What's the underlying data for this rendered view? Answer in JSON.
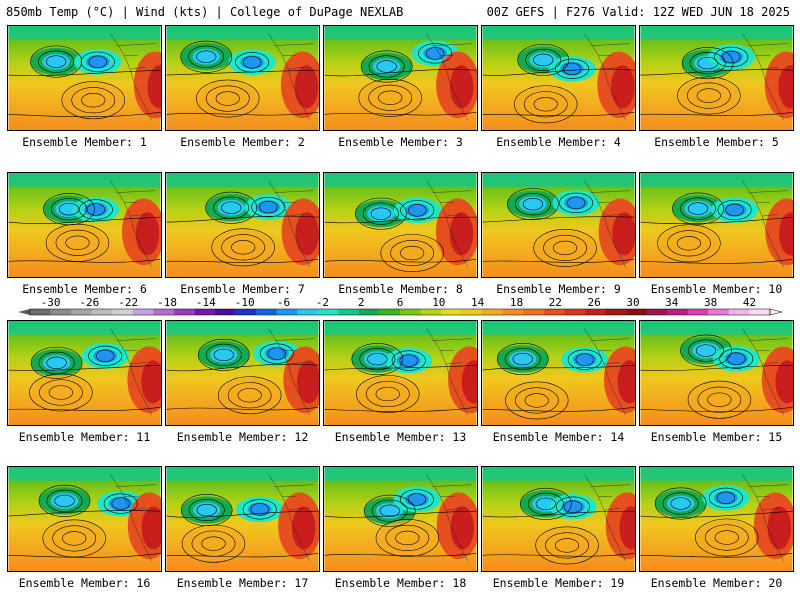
{
  "header": {
    "left": "850mb Temp (°C) | Wind (kts) | College of DuPage NEXLAB",
    "right": "00Z GEFS | F276 Valid: 12Z WED JUN 18 2025"
  },
  "panels": [
    {
      "label": "Ensemble Member: 1"
    },
    {
      "label": "Ensemble Member: 2"
    },
    {
      "label": "Ensemble Member: 3"
    },
    {
      "label": "Ensemble Member: 4"
    },
    {
      "label": "Ensemble Member: 5"
    },
    {
      "label": "Ensemble Member: 6"
    },
    {
      "label": "Ensemble Member: 7"
    },
    {
      "label": "Ensemble Member: 8"
    },
    {
      "label": "Ensemble Member: 9"
    },
    {
      "label": "Ensemble Member: 10"
    },
    {
      "label": "Ensemble Member: 11"
    },
    {
      "label": "Ensemble Member: 12"
    },
    {
      "label": "Ensemble Member: 13"
    },
    {
      "label": "Ensemble Member: 14"
    },
    {
      "label": "Ensemble Member: 15"
    },
    {
      "label": "Ensemble Member: 16"
    },
    {
      "label": "Ensemble Member: 17"
    },
    {
      "label": "Ensemble Member: 18"
    },
    {
      "label": "Ensemble Member: 19"
    },
    {
      "label": "Ensemble Member: 20"
    }
  ],
  "colorbar": {
    "ticks": [
      "-30",
      "-26",
      "-22",
      "-18",
      "-14",
      "-10",
      "-6",
      "-2",
      "2",
      "6",
      "10",
      "14",
      "18",
      "22",
      "26",
      "30",
      "34",
      "38",
      "42"
    ],
    "colors": [
      "#6e6e6e",
      "#8c8c8c",
      "#a6a6a6",
      "#bcbcbc",
      "#d2d2d2",
      "#c8a0e6",
      "#b46ed2",
      "#9b3cbe",
      "#7814aa",
      "#4b0fa0",
      "#1e32c8",
      "#1464e6",
      "#1e96f0",
      "#28c8f0",
      "#1ee6c8",
      "#14c88c",
      "#14aa50",
      "#3cb41e",
      "#78c814",
      "#b4d214",
      "#e6dc1e",
      "#f0c81e",
      "#f5aa1e",
      "#f58c1e",
      "#f06e1e",
      "#e6501e",
      "#dc321e",
      "#c81e1e",
      "#aa1414",
      "#8c0f0f",
      "#a01450",
      "#be1e82",
      "#dc3cb4",
      "#eb78d2",
      "#f5b4e6",
      "#fadcf0"
    ]
  }
}
